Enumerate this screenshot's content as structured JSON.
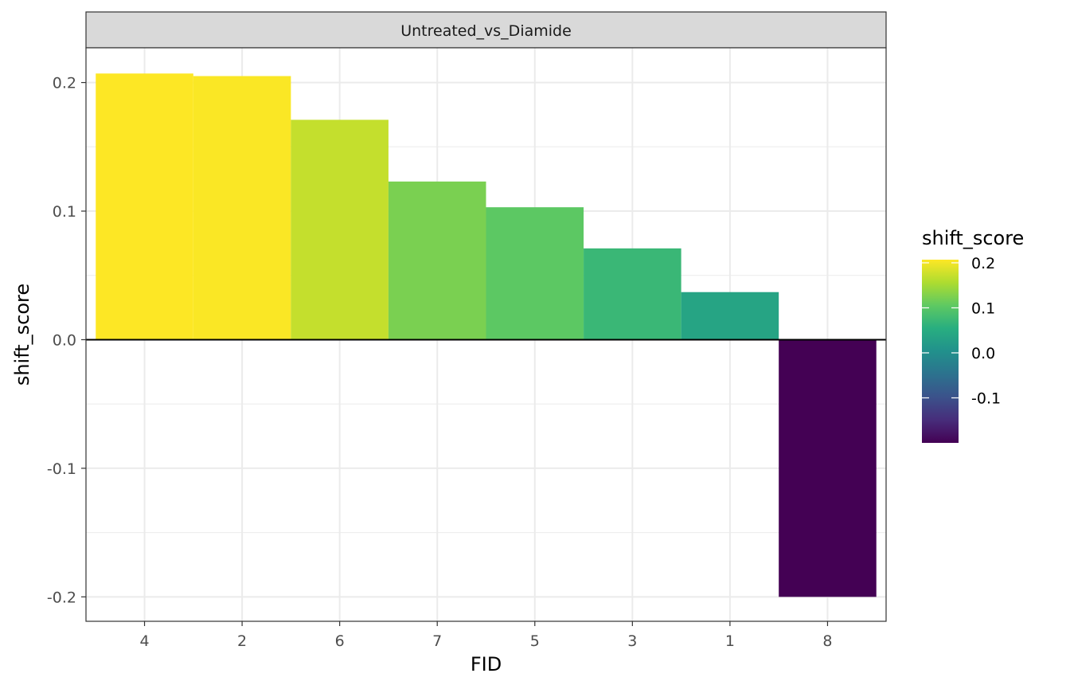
{
  "chart_data": {
    "type": "bar",
    "facet": "Untreated_vs_Diamide",
    "categories": [
      "4",
      "2",
      "6",
      "7",
      "5",
      "3",
      "1",
      "8"
    ],
    "values": [
      0.207,
      0.205,
      0.171,
      0.123,
      0.103,
      0.071,
      0.037,
      -0.2
    ],
    "xlabel": "FID",
    "ylabel": "shift_score",
    "ylim": [
      -0.219,
      0.227
    ],
    "yticks": [
      -0.2,
      -0.1,
      0.0,
      0.1,
      0.2
    ],
    "ytick_labels": [
      "-0.2",
      "-0.1",
      "0.0",
      "0.1",
      "0.2"
    ],
    "hline": 0,
    "grid": true,
    "legend": {
      "title": "shift_score",
      "position": "right",
      "colormap": "viridis",
      "range": [
        -0.2,
        0.207
      ],
      "ticks": [
        0.2,
        0.1,
        0.0,
        -0.1
      ],
      "tick_labels": [
        "0.2",
        "0.1",
        "0.0",
        "-0.1"
      ]
    }
  }
}
